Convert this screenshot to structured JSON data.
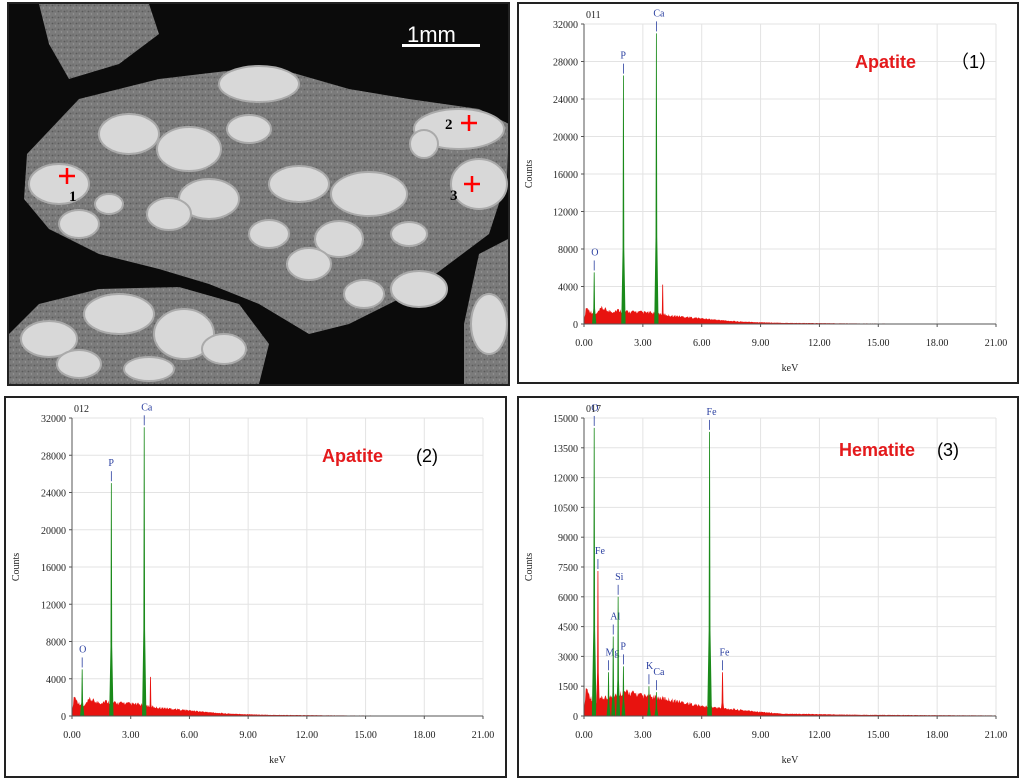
{
  "sem": {
    "scale_label": "1mm",
    "markers": [
      {
        "label": "1"
      },
      {
        "label": "2"
      },
      {
        "label": "3"
      }
    ]
  },
  "colors": {
    "spectrum_fill": "#e8130f",
    "peak_fill": "#1a8a1a",
    "element_label": "#2a3fa0",
    "mineral_label": "#e41a1c"
  },
  "chart_data": [
    {
      "type": "area",
      "spectrum_id": "011",
      "mineral": "Apatite",
      "point_label": "（1）",
      "xlabel": "keV",
      "ylabel": "Counts",
      "xlim": [
        0,
        21
      ],
      "ylim": [
        0,
        32000
      ],
      "x_ticks": [
        "0.00",
        "3.00",
        "6.00",
        "9.00",
        "12.00",
        "15.00",
        "18.00",
        "21.00"
      ],
      "y_ticks": [
        "0",
        "4000",
        "8000",
        "12000",
        "16000",
        "20000",
        "24000",
        "28000",
        "32000"
      ],
      "background": [
        [
          0,
          200
        ],
        [
          0.1,
          1800
        ],
        [
          0.3,
          1400
        ],
        [
          0.6,
          1000
        ],
        [
          0.9,
          1700
        ],
        [
          1.4,
          1300
        ],
        [
          1.7,
          1500
        ],
        [
          2.2,
          1300
        ],
        [
          2.6,
          1300
        ],
        [
          3.0,
          1250
        ],
        [
          3.4,
          1200
        ],
        [
          3.9,
          1100
        ],
        [
          4.4,
          900
        ],
        [
          5.0,
          800
        ],
        [
          6.0,
          600
        ],
        [
          7.0,
          400
        ],
        [
          8.0,
          250
        ],
        [
          10.0,
          120
        ],
        [
          14.0,
          60
        ],
        [
          18.0,
          40
        ],
        [
          21.0,
          30
        ]
      ],
      "peaks": [
        {
          "element": "O",
          "x": 0.52,
          "y": 5500,
          "width": 0.09,
          "label": true
        },
        {
          "element": "P",
          "x": 2.01,
          "y": 26500,
          "width": 0.09,
          "label": true
        },
        {
          "element": "Ca",
          "x": 3.69,
          "y": 31000,
          "width": 0.09,
          "label": true
        },
        {
          "element": "",
          "x": 4.01,
          "y": 4200,
          "width": 0.08,
          "label": false,
          "color": "red"
        }
      ]
    },
    {
      "type": "area",
      "spectrum_id": "012",
      "mineral": "Apatite",
      "point_label": "(2)",
      "xlabel": "keV",
      "ylabel": "Counts",
      "xlim": [
        0,
        21
      ],
      "ylim": [
        0,
        32000
      ],
      "x_ticks": [
        "0.00",
        "3.00",
        "6.00",
        "9.00",
        "12.00",
        "15.00",
        "18.00",
        "21.00"
      ],
      "y_ticks": [
        "0",
        "4000",
        "8000",
        "12000",
        "16000",
        "20000",
        "24000",
        "28000",
        "32000"
      ],
      "background": [
        [
          0,
          200
        ],
        [
          0.1,
          2200
        ],
        [
          0.3,
          1500
        ],
        [
          0.6,
          1000
        ],
        [
          0.9,
          1800
        ],
        [
          1.4,
          1400
        ],
        [
          1.7,
          1600
        ],
        [
          2.2,
          1400
        ],
        [
          2.6,
          1400
        ],
        [
          3.0,
          1300
        ],
        [
          3.4,
          1250
        ],
        [
          3.9,
          1100
        ],
        [
          4.4,
          900
        ],
        [
          5.0,
          800
        ],
        [
          6.0,
          600
        ],
        [
          7.0,
          400
        ],
        [
          8.0,
          250
        ],
        [
          10.0,
          120
        ],
        [
          14.0,
          60
        ],
        [
          18.0,
          40
        ],
        [
          21.0,
          30
        ]
      ],
      "peaks": [
        {
          "element": "O",
          "x": 0.52,
          "y": 5000,
          "width": 0.09,
          "label": true
        },
        {
          "element": "P",
          "x": 2.01,
          "y": 25000,
          "width": 0.09,
          "label": true
        },
        {
          "element": "Ca",
          "x": 3.69,
          "y": 31000,
          "width": 0.09,
          "label": true
        },
        {
          "element": "",
          "x": 4.01,
          "y": 4200,
          "width": 0.08,
          "label": false,
          "color": "red"
        }
      ]
    },
    {
      "type": "area",
      "spectrum_id": "017",
      "mineral": "Hematite",
      "point_label": "(3)",
      "xlabel": "keV",
      "ylabel": "Counts",
      "xlim": [
        0,
        21
      ],
      "ylim": [
        0,
        15000
      ],
      "x_ticks": [
        "0.00",
        "3.00",
        "6.00",
        "9.00",
        "12.00",
        "15.00",
        "18.00",
        "21.00"
      ],
      "y_ticks": [
        "0",
        "1500",
        "3000",
        "4500",
        "6000",
        "7500",
        "9000",
        "10500",
        "12000",
        "13500",
        "15000"
      ],
      "background": [
        [
          0,
          100
        ],
        [
          0.1,
          1500
        ],
        [
          0.3,
          1000
        ],
        [
          0.6,
          600
        ],
        [
          0.9,
          900
        ],
        [
          1.2,
          900
        ],
        [
          1.6,
          1100
        ],
        [
          2.0,
          1200
        ],
        [
          2.5,
          1150
        ],
        [
          3.0,
          1000
        ],
        [
          3.5,
          950
        ],
        [
          4.0,
          900
        ],
        [
          4.5,
          800
        ],
        [
          5.0,
          700
        ],
        [
          5.5,
          600
        ],
        [
          6.0,
          500
        ],
        [
          7.0,
          400
        ],
        [
          8.0,
          300
        ],
        [
          10.0,
          120
        ],
        [
          14.0,
          60
        ],
        [
          18.0,
          40
        ],
        [
          21.0,
          30
        ]
      ],
      "peaks": [
        {
          "element": "O",
          "x": 0.52,
          "y": 14500,
          "width": 0.1,
          "label": true
        },
        {
          "element": "Fe",
          "x": 0.71,
          "y": 7300,
          "width": 0.08,
          "label": true,
          "color": "red"
        },
        {
          "element": "Mg",
          "x": 1.25,
          "y": 2200,
          "width": 0.08,
          "label": true
        },
        {
          "element": "Al",
          "x": 1.49,
          "y": 4000,
          "width": 0.08,
          "label": true
        },
        {
          "element": "Si",
          "x": 1.74,
          "y": 6000,
          "width": 0.08,
          "label": true
        },
        {
          "element": "P",
          "x": 2.01,
          "y": 2500,
          "width": 0.08,
          "label": true
        },
        {
          "element": "K",
          "x": 3.31,
          "y": 1500,
          "width": 0.08,
          "label": true
        },
        {
          "element": "Ca",
          "x": 3.69,
          "y": 1200,
          "width": 0.08,
          "label": true
        },
        {
          "element": "Fe",
          "x": 6.4,
          "y": 14300,
          "width": 0.1,
          "label": true
        },
        {
          "element": "Fe",
          "x": 7.06,
          "y": 2200,
          "width": 0.1,
          "label": true,
          "color": "red"
        }
      ]
    }
  ]
}
